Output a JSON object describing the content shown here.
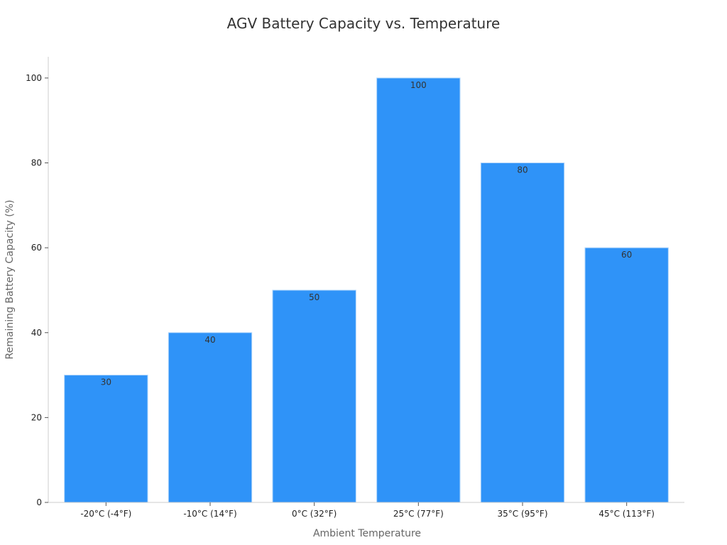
{
  "chart_data": {
    "type": "bar",
    "title": "AGV Battery Capacity vs. Temperature",
    "xlabel": "Ambient Temperature",
    "ylabel": "Remaining Battery Capacity (%)",
    "categories": [
      "-20°C (-4°F)",
      "-10°C (14°F)",
      "0°C (32°F)",
      "25°C (77°F)",
      "35°C (95°F)",
      "45°C (113°F)"
    ],
    "values": [
      30,
      40,
      50,
      100,
      80,
      60
    ],
    "data_labels": [
      "30",
      "40",
      "50",
      "100",
      "80",
      "60"
    ],
    "ylim": [
      0,
      105
    ],
    "yticks": [
      0,
      20,
      40,
      60,
      80,
      100
    ],
    "ytick_labels": [
      "0",
      "20",
      "40",
      "60",
      "80",
      "100"
    ],
    "grid": false,
    "legend": "none",
    "colors": {
      "bar_fill": "#2F93F8",
      "bar_edge": "#AED4FB"
    }
  }
}
